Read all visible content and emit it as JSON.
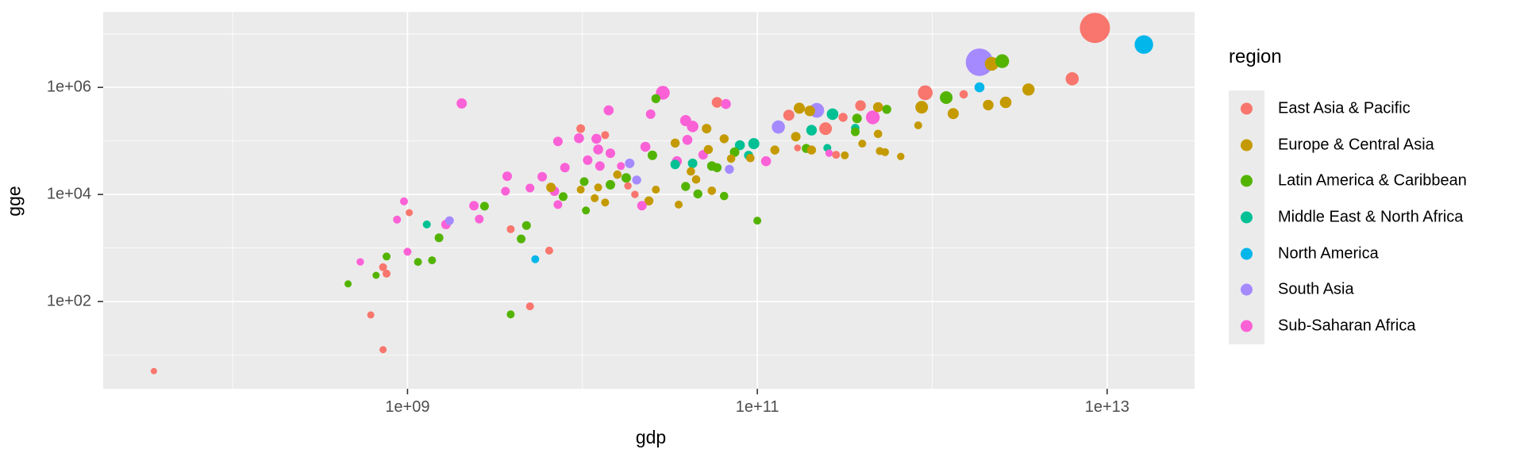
{
  "axes": {
    "x_title": "gdp",
    "y_title": "gge"
  },
  "legend": {
    "title": "region",
    "items": [
      {
        "label": "East Asia & Pacific",
        "color": "#F8766D"
      },
      {
        "label": "Europe & Central Asia",
        "color": "#C49A00"
      },
      {
        "label": "Latin America & Caribbean",
        "color": "#53B400"
      },
      {
        "label": "Middle East & North Africa",
        "color": "#00C094"
      },
      {
        "label": "North America",
        "color": "#00B6EB"
      },
      {
        "label": "South Asia",
        "color": "#A58AFF"
      },
      {
        "label": "Sub-Saharan Africa",
        "color": "#FB61D7"
      }
    ]
  },
  "chart_data": {
    "type": "scatter",
    "title": "",
    "xlabel": "gdp",
    "ylabel": "gge",
    "x_scale": "log10",
    "y_scale": "log10",
    "xlim_log10": [
      7.26,
      13.5
    ],
    "ylim_log10": [
      0.37,
      7.41
    ],
    "x_ticks": [
      {
        "label": "1e+09",
        "log10": 9
      },
      {
        "label": "1e+11",
        "log10": 11
      },
      {
        "label": "1e+13",
        "log10": 13
      }
    ],
    "y_ticks": [
      {
        "label": "1e+02",
        "log10": 2
      },
      {
        "label": "1e+04",
        "log10": 4
      },
      {
        "label": "1e+06",
        "log10": 6
      }
    ],
    "x_minor_log10": [
      8,
      10,
      12
    ],
    "y_minor_log10": [
      1,
      3,
      5,
      7
    ],
    "grid": true,
    "legend_position": "right",
    "point_encoding": "[gdp_log10, gge_log10, bubble_radius_px, region_index]",
    "points": [
      [
        7.55,
        0.7,
        4.0,
        0
      ],
      [
        8.73,
        2.74,
        4.7,
        6
      ],
      [
        8.82,
        2.49,
        4.5,
        2
      ],
      [
        8.66,
        2.33,
        4.5,
        2
      ],
      [
        8.79,
        1.75,
        4.5,
        0
      ],
      [
        8.86,
        2.64,
        5.0,
        0
      ],
      [
        8.88,
        2.52,
        5.0,
        0
      ],
      [
        8.86,
        1.1,
        4.5,
        0
      ],
      [
        8.98,
        3.87,
        5.0,
        6
      ],
      [
        9.01,
        3.66,
        4.5,
        0
      ],
      [
        8.94,
        3.53,
        5.0,
        6
      ],
      [
        9.11,
        3.44,
        5.0,
        3
      ],
      [
        9.22,
        3.44,
        6.0,
        6
      ],
      [
        9.24,
        3.51,
        5.5,
        5
      ],
      [
        9.18,
        3.19,
        5.5,
        2
      ],
      [
        9.38,
        3.79,
        6.0,
        6
      ],
      [
        9.44,
        3.78,
        5.5,
        2
      ],
      [
        9.41,
        3.54,
        5.5,
        6
      ],
      [
        9.59,
        3.35,
        5.0,
        0
      ],
      [
        9.68,
        3.42,
        5.5,
        2
      ],
      [
        9.65,
        3.17,
        5.5,
        2
      ],
      [
        9.0,
        2.93,
        5.0,
        6
      ],
      [
        8.88,
        2.84,
        5.0,
        2
      ],
      [
        9.06,
        2.74,
        5.0,
        2
      ],
      [
        9.14,
        2.77,
        5.0,
        2
      ],
      [
        9.81,
        2.95,
        5.0,
        0
      ],
      [
        9.73,
        2.79,
        5.0,
        4
      ],
      [
        9.7,
        1.91,
        5.0,
        0
      ],
      [
        9.59,
        1.76,
        5.0,
        2
      ],
      [
        9.31,
        5.7,
        6.5,
        6
      ],
      [
        10.15,
        5.57,
        6.3,
        6
      ],
      [
        9.99,
        5.23,
        5.5,
        0
      ],
      [
        10.13,
        5.11,
        5.0,
        0
      ],
      [
        9.86,
        4.99,
        6.0,
        6
      ],
      [
        9.98,
        5.05,
        6.3,
        6
      ],
      [
        10.08,
        5.04,
        6.3,
        6
      ],
      [
        10.09,
        4.84,
        6.3,
        6
      ],
      [
        10.16,
        4.77,
        6.0,
        6
      ],
      [
        10.03,
        4.64,
        6.0,
        6
      ],
      [
        9.9,
        4.5,
        6.0,
        6
      ],
      [
        10.1,
        4.53,
        6.0,
        6
      ],
      [
        9.57,
        4.34,
        6.0,
        6
      ],
      [
        9.77,
        4.33,
        6.0,
        6
      ],
      [
        9.56,
        4.06,
        5.5,
        6
      ],
      [
        9.7,
        4.12,
        5.5,
        6
      ],
      [
        9.84,
        4.06,
        6.0,
        6
      ],
      [
        9.86,
        3.81,
        5.5,
        6
      ],
      [
        9.82,
        4.13,
        6.0,
        1
      ],
      [
        9.99,
        4.09,
        5.0,
        1
      ],
      [
        9.89,
        3.96,
        5.5,
        2
      ],
      [
        10.01,
        4.24,
        5.5,
        2
      ],
      [
        10.09,
        4.13,
        5.0,
        1
      ],
      [
        10.36,
        4.89,
        6.3,
        6
      ],
      [
        10.39,
        5.5,
        6.0,
        6
      ],
      [
        10.46,
        5.9,
        8.7,
        6
      ],
      [
        10.42,
        5.79,
        5.7,
        2
      ],
      [
        10.4,
        4.73,
        6.0,
        2
      ],
      [
        10.53,
        4.96,
        5.7,
        1
      ],
      [
        10.6,
        5.02,
        6.3,
        6
      ],
      [
        10.54,
        4.62,
        6.3,
        6
      ],
      [
        10.59,
        5.38,
        7.0,
        6
      ],
      [
        10.63,
        5.27,
        7.3,
        6
      ],
      [
        10.71,
        5.23,
        6.0,
        1
      ],
      [
        10.2,
        4.37,
        5.3,
        1
      ],
      [
        10.25,
        4.31,
        6.0,
        2
      ],
      [
        10.31,
        4.27,
        5.7,
        5
      ],
      [
        10.27,
        4.58,
        6.0,
        5
      ],
      [
        10.22,
        4.53,
        5.0,
        6
      ],
      [
        10.26,
        4.16,
        4.7,
        0
      ],
      [
        10.16,
        4.18,
        6.0,
        2
      ],
      [
        10.3,
        4.0,
        4.7,
        0
      ],
      [
        10.42,
        4.09,
        5.0,
        1
      ],
      [
        10.38,
        3.88,
        5.7,
        1
      ],
      [
        10.34,
        3.79,
        6.0,
        6
      ],
      [
        10.59,
        4.15,
        5.7,
        2
      ],
      [
        10.65,
        4.28,
        5.3,
        1
      ],
      [
        10.66,
        4.01,
        5.7,
        2
      ],
      [
        10.74,
        4.07,
        5.3,
        1
      ],
      [
        10.55,
        3.81,
        5.0,
        1
      ],
      [
        10.81,
        3.97,
        5.3,
        2
      ],
      [
        10.53,
        4.56,
        6.0,
        3
      ],
      [
        10.63,
        4.58,
        6.0,
        3
      ],
      [
        10.69,
        4.74,
        6.0,
        6
      ],
      [
        10.72,
        4.84,
        5.7,
        1
      ],
      [
        10.74,
        4.53,
        6.0,
        2
      ],
      [
        10.77,
        4.5,
        5.7,
        2
      ],
      [
        10.84,
        4.47,
        5.7,
        5
      ],
      [
        10.62,
        4.43,
        5.3,
        1
      ],
      [
        10.13,
        3.85,
        5.0,
        1
      ],
      [
        10.02,
        3.7,
        5.0,
        2
      ],
      [
        10.07,
        3.93,
        5.0,
        1
      ],
      [
        10.77,
        5.72,
        6.7,
        0
      ],
      [
        10.82,
        5.69,
        6.3,
        6
      ],
      [
        10.81,
        5.04,
        5.7,
        1
      ],
      [
        10.9,
        4.92,
        6.3,
        3
      ],
      [
        10.98,
        4.95,
        7.0,
        3
      ],
      [
        10.95,
        4.73,
        5.7,
        3
      ],
      [
        10.96,
        4.68,
        5.3,
        1
      ],
      [
        10.87,
        4.79,
        6.0,
        2
      ],
      [
        10.85,
        4.67,
        5.3,
        1
      ],
      [
        11.05,
        4.62,
        6.3,
        6
      ],
      [
        11.1,
        4.83,
        5.7,
        1
      ],
      [
        11.12,
        5.26,
        8.3,
        5
      ],
      [
        11.18,
        5.48,
        7.0,
        0
      ],
      [
        11.24,
        5.61,
        7.0,
        1
      ],
      [
        11.34,
        5.57,
        9.3,
        5
      ],
      [
        11.3,
        5.56,
        6.7,
        1
      ],
      [
        11.43,
        5.5,
        7.3,
        3
      ],
      [
        11.49,
        5.44,
        5.7,
        0
      ],
      [
        11.39,
        5.23,
        8.0,
        0
      ],
      [
        11.31,
        5.2,
        6.7,
        3
      ],
      [
        11.57,
        5.42,
        6.0,
        2
      ],
      [
        11.59,
        5.66,
        6.7,
        0
      ],
      [
        11.66,
        5.44,
        8.7,
        6
      ],
      [
        11.69,
        5.63,
        6.3,
        1
      ],
      [
        11.74,
        5.59,
        5.7,
        2
      ],
      [
        11.56,
        5.24,
        5.3,
        3
      ],
      [
        11.56,
        5.17,
        5.5,
        2
      ],
      [
        11.28,
        4.86,
        5.7,
        2
      ],
      [
        11.22,
        5.08,
        6.0,
        1
      ],
      [
        11.23,
        4.87,
        4.3,
        0
      ],
      [
        11.31,
        4.83,
        5.7,
        1
      ],
      [
        11.4,
        4.87,
        5.0,
        3
      ],
      [
        11.41,
        4.77,
        4.7,
        6
      ],
      [
        11.45,
        4.74,
        5.0,
        0
      ],
      [
        11.5,
        4.73,
        5.0,
        1
      ],
      [
        11.6,
        4.95,
        5.0,
        1
      ],
      [
        11.69,
        5.13,
        5.3,
        1
      ],
      [
        11.7,
        4.81,
        5.0,
        1
      ],
      [
        11.73,
        4.79,
        5.0,
        1
      ],
      [
        11.82,
        4.71,
        4.7,
        1
      ],
      [
        11.92,
        5.29,
        5.0,
        1
      ],
      [
        11.94,
        5.63,
        8.0,
        1
      ],
      [
        11.96,
        5.9,
        9.3,
        0
      ],
      [
        12.08,
        5.81,
        8.0,
        2
      ],
      [
        12.12,
        5.51,
        7.0,
        1
      ],
      [
        12.18,
        5.87,
        5.3,
        0
      ],
      [
        12.27,
        6.0,
        6.3,
        4
      ],
      [
        12.27,
        6.47,
        17.3,
        5
      ],
      [
        12.34,
        6.44,
        8.7,
        1
      ],
      [
        12.4,
        6.49,
        8.7,
        2
      ],
      [
        12.32,
        5.67,
        6.7,
        1
      ],
      [
        12.42,
        5.72,
        7.3,
        1
      ],
      [
        12.55,
        5.96,
        7.7,
        1
      ],
      [
        12.8,
        6.16,
        8.3,
        0
      ],
      [
        12.93,
        7.11,
        19.0,
        0
      ],
      [
        13.21,
        6.8,
        11.7,
        4
      ],
      [
        11.0,
        3.51,
        5.0,
        2
      ]
    ]
  }
}
